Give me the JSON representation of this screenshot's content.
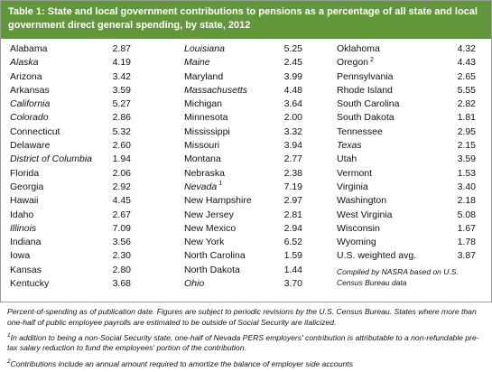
{
  "header": {
    "title": "Table 1: State and local government contributions to pensions as a percentage of all state and local government direct general spending, by state, 2012"
  },
  "table": {
    "columns": [
      [
        {
          "state": "Alabama",
          "value": "2.87"
        },
        {
          "state": "Alaska",
          "value": "4.19",
          "italic": true
        },
        {
          "state": "Arizona",
          "value": "3.42"
        },
        {
          "state": "Arkansas",
          "value": "3.59"
        },
        {
          "state": "California",
          "value": "5.27",
          "italic": true
        },
        {
          "state": "Colorado",
          "value": "2.86",
          "italic": true
        },
        {
          "state": "Connecticut",
          "value": "5.32"
        },
        {
          "state": "Delaware",
          "value": "2.60"
        },
        {
          "state": "District of Columbia",
          "value": "1.94",
          "italic": true
        },
        {
          "state": "Florida",
          "value": "2.06"
        },
        {
          "state": "Georgia",
          "value": "2.92"
        },
        {
          "state": "Hawaii",
          "value": "4.45"
        },
        {
          "state": "Idaho",
          "value": "2.67"
        },
        {
          "state": "Illinois",
          "value": "7.09",
          "italic": true
        },
        {
          "state": "Indiana",
          "value": "3.56"
        },
        {
          "state": "Iowa",
          "value": "2.30"
        },
        {
          "state": "Kansas",
          "value": "2.80"
        },
        {
          "state": "Kentucky",
          "value": "3.68"
        }
      ],
      [
        {
          "state": "Louisiana",
          "value": "5.25",
          "italic": true
        },
        {
          "state": "Maine",
          "value": "2.45",
          "italic": true
        },
        {
          "state": "Maryland",
          "value": "3.99"
        },
        {
          "state": "Massachusetts",
          "value": "4.48",
          "italic": true
        },
        {
          "state": "Michigan",
          "value": "3.64"
        },
        {
          "state": "Minnesota",
          "value": "2.00"
        },
        {
          "state": "Mississippi",
          "value": "3.32"
        },
        {
          "state": "Missouri",
          "value": "3.94"
        },
        {
          "state": "Montana",
          "value": "2.77"
        },
        {
          "state": "Nebraska",
          "value": "2.38"
        },
        {
          "state": "Nevada",
          "value": "7.19",
          "italic": true,
          "note": "1"
        },
        {
          "state": "New Hampshire",
          "value": "2.97"
        },
        {
          "state": "New Jersey",
          "value": "2.81"
        },
        {
          "state": "New Mexico",
          "value": "2.94"
        },
        {
          "state": "New York",
          "value": "6.52"
        },
        {
          "state": "North Carolina",
          "value": "1.59"
        },
        {
          "state": "North Dakota",
          "value": "1.44"
        },
        {
          "state": "Ohio",
          "value": "3.70",
          "italic": true
        }
      ],
      [
        {
          "state": "Oklahoma",
          "value": "4.32"
        },
        {
          "state": "Oregon",
          "value": "4.43",
          "note": "2"
        },
        {
          "state": "Pennsylvania",
          "value": "2.65"
        },
        {
          "state": "Rhode Island",
          "value": "5.55"
        },
        {
          "state": "South Carolina",
          "value": "2.82"
        },
        {
          "state": "South Dakota",
          "value": "1.81"
        },
        {
          "state": "Tennessee",
          "value": "2.95"
        },
        {
          "state": "Texas",
          "value": "2.15",
          "italic": true
        },
        {
          "state": "Utah",
          "value": "3.59"
        },
        {
          "state": "Vermont",
          "value": "1.53"
        },
        {
          "state": "Virginia",
          "value": "3.40"
        },
        {
          "state": "Washington",
          "value": "2.18"
        },
        {
          "state": "West Virginia",
          "value": "5.08"
        },
        {
          "state": "Wisconsin",
          "value": "1.67"
        },
        {
          "state": "Wyoming",
          "value": "1.78"
        },
        {
          "state": "U.S. weighted avg.",
          "value": "3.87"
        }
      ]
    ],
    "source": "Compiled by NASRA based on U.S. Census Bureau data"
  },
  "notes": [
    {
      "text": "Percent-of-spending as of publication date. Figures are subject to periodic revisions by the U.S. Census Bureau. States where more than one-half of public employee payrolls are estimated to be outside of Social Security are italicized."
    },
    {
      "marker": "1",
      "text": "In addition to being a non-Social Security state, one-half of Nevada PERS employers' contribution is attributable to a non-refundable pre-tax salary reduction to fund the employees' portion of the contribution."
    },
    {
      "marker": "2",
      "text": "Contributions include an annual amount required to amortize the balance of employer side accounts"
    }
  ]
}
